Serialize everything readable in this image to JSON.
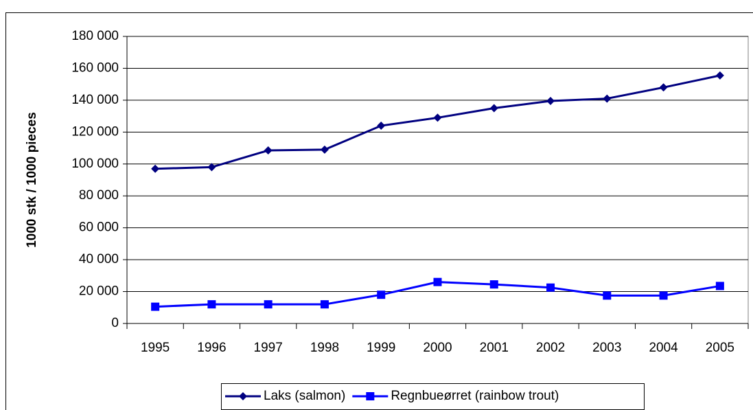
{
  "chart_data": {
    "type": "line",
    "ylabel": "1000 stk / 1000 pieces",
    "categories": [
      "1995",
      "1996",
      "1997",
      "1998",
      "1999",
      "2000",
      "2001",
      "2002",
      "2003",
      "2004",
      "2005"
    ],
    "series": [
      {
        "name": "Laks (salmon)",
        "color": "#000080",
        "marker": "diamond",
        "values": [
          97000,
          98000,
          108500,
          109000,
          124000,
          129000,
          135000,
          139500,
          141000,
          148000,
          155500
        ]
      },
      {
        "name": "Regnbueørret (rainbow trout)",
        "color": "#0000ff",
        "marker": "square",
        "values": [
          10500,
          12000,
          12000,
          12000,
          18000,
          26000,
          24500,
          22500,
          17500,
          17500,
          23500
        ]
      }
    ],
    "ylim": [
      0,
      180000
    ],
    "yticks": [
      0,
      {
        "value": 20000,
        "label": "20 000"
      },
      {
        "value": 40000,
        "label": "40 000"
      },
      {
        "value": 60000,
        "label": "60 000"
      },
      {
        "value": 80000,
        "label": "80 000"
      },
      {
        "value": 100000,
        "label": "100 000"
      },
      {
        "value": 120000,
        "label": "120 000"
      },
      {
        "value": 140000,
        "label": "140 000"
      },
      {
        "value": 160000,
        "label": "160 000"
      },
      {
        "value": 180000,
        "label": "180 000"
      }
    ],
    "grid": true,
    "legend": "bottom"
  }
}
